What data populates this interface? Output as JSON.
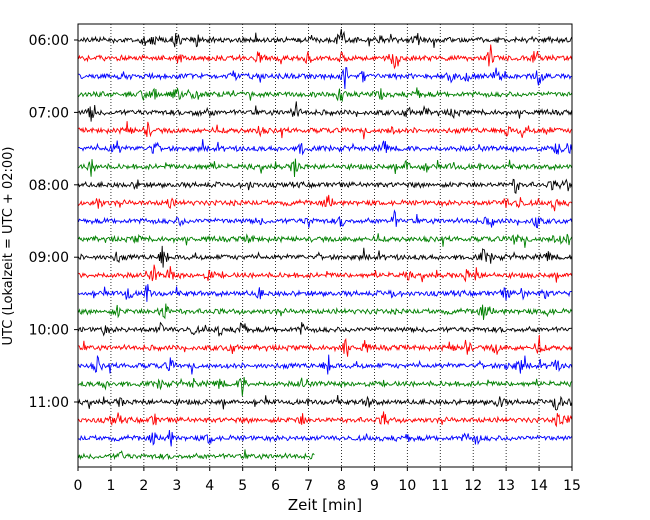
{
  "chart_data": {
    "type": "line",
    "title": "",
    "xlabel": "Zeit  [min]",
    "ylabel": "UTC (Lokalzeit = UTC + 02:00)",
    "xlim": [
      0,
      15
    ],
    "x_ticks": [
      "0",
      "1",
      "2",
      "3",
      "4",
      "5",
      "6",
      "7",
      "8",
      "9",
      "10",
      "11",
      "12",
      "13",
      "14",
      "15"
    ],
    "y_ticks": [
      "06:00",
      "07:00",
      "08:00",
      "09:00",
      "10:00",
      "11:00"
    ],
    "trace_interval_minutes": 15,
    "start_time": "06:00",
    "trace_count": 24,
    "last_trace_end_minute": 7.2,
    "grid": "vertical dotted",
    "colors": [
      "#000000",
      "#ff0000",
      "#0000ff",
      "#008000"
    ],
    "events": [
      [
        8.0,
        1.6
      ],
      [
        12.5,
        0.9
      ],
      [
        4.7,
        0.6
      ],
      [
        2.0,
        0.5
      ],
      [
        0.4,
        0.8
      ],
      [
        2.1,
        0.9
      ],
      [
        2.3,
        0.7
      ],
      [
        3.6,
        0.5
      ],
      [
        5.2,
        0.5
      ],
      [
        7.6,
        1.3
      ],
      [
        3.1,
        0.5
      ],
      [
        14.4,
        0.4
      ],
      [
        1.2,
        0.6
      ],
      [
        4.0,
        0.7
      ],
      [
        9.5,
        0.5
      ],
      [
        12.3,
        0.8
      ],
      [
        4.3,
        0.6
      ],
      [
        8.7,
        0.7
      ],
      [
        13.4,
        0.9
      ],
      [
        6.8,
        0.6
      ],
      [
        14.5,
        0.8
      ],
      [
        1.2,
        0.7
      ],
      [
        11.8,
        0.6
      ],
      [
        14.9,
        0.5
      ],
      [
        3.0,
        0.6
      ],
      [
        9.6,
        1.0
      ],
      [
        14.0,
        1.0
      ],
      [
        3.0,
        0.5
      ],
      [
        11.4,
        0.5
      ],
      [
        13.0,
        0.8
      ],
      [
        14.9,
        0.6
      ],
      [
        6.6,
        1.3
      ],
      [
        1.8,
        0.4
      ],
      [
        2.8,
        0.7
      ],
      [
        5.5,
        0.4
      ],
      [
        14.7,
        0.4
      ],
      [
        2.6,
        0.6
      ],
      [
        10.0,
        0.4
      ],
      [
        14.2,
        0.5
      ],
      [
        2.6,
        1.1
      ],
      [
        3.5,
        0.5
      ],
      [
        12.7,
        0.7
      ],
      [
        14.5,
        0.9
      ],
      [
        2.5,
        0.6
      ],
      [
        12.8,
        0.8
      ],
      [
        14.6,
        0.9
      ],
      [
        2.8,
        1.0
      ],
      [
        1.3,
        0.5
      ],
      [
        10.3,
        0.6
      ],
      [
        13.9,
        1.0
      ],
      [
        8.1,
        1.3
      ],
      [
        9.2,
        0.6
      ],
      [
        0.5,
        0.4
      ],
      [
        1.5,
        0.9
      ],
      [
        6.8,
        0.7
      ],
      [
        10.0,
        0.8
      ],
      [
        14.9,
        0.6
      ],
      [
        0.6,
        0.9
      ],
      [
        8.0,
        0.6
      ],
      [
        13.3,
        1.0
      ],
      [
        14.3,
        0.6
      ],
      [
        2.3,
        1.0
      ],
      [
        5.5,
        0.6
      ],
      [
        12.5,
        0.6
      ],
      [
        0.8,
        0.5
      ],
      [
        11.3,
        0.6
      ],
      [
        13.0,
        0.5
      ],
      [
        5.0,
        1.2
      ],
      [
        8.8,
        0.7
      ],
      [
        9.3,
        0.9
      ],
      [
        12.1,
        0.7
      ],
      [
        14.6,
        0.6
      ],
      [
        2.3,
        0.7
      ],
      [
        7.0,
        0.6
      ],
      [
        11.8,
        1.1
      ],
      [
        3.6,
        0.7
      ],
      [
        10.5,
        0.5
      ],
      [
        13.5,
        0.6
      ],
      [
        1.0,
        0.4
      ],
      [
        4.0,
        0.4
      ]
    ]
  }
}
